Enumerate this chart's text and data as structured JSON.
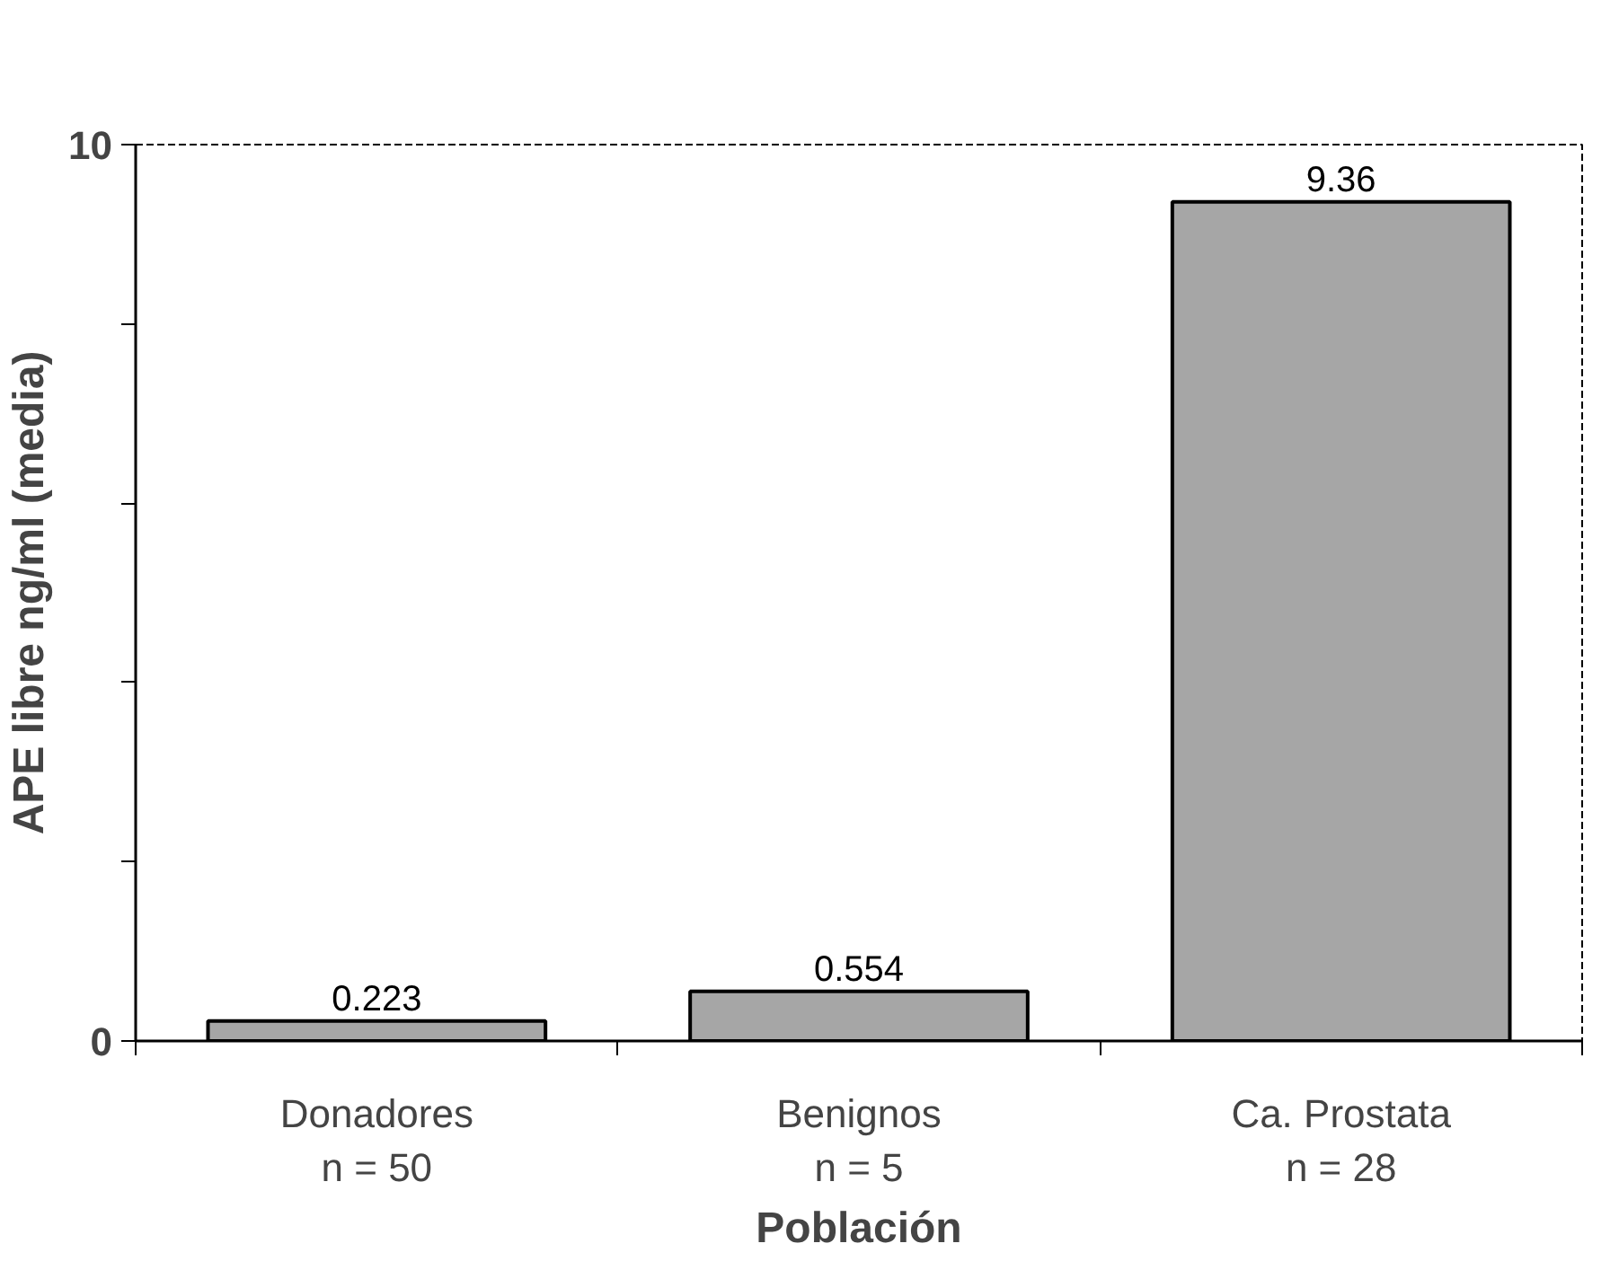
{
  "chart_data": {
    "type": "bar",
    "xlabel": "Población",
    "ylabel": "APE libre ng/ml (media)",
    "categories": [
      "Donadores\nn = 50",
      "Benignos\nn = 5",
      "Ca. Prostata\nn = 28"
    ],
    "values": [
      0.223,
      0.554,
      9.36
    ],
    "color": "#a6a6a6",
    "data_labels": true,
    "ylim": [
      0,
      10
    ],
    "yticks": [
      0,
      {
        "value": 2,
        "label": null
      },
      {
        "value": 4,
        "label": null
      },
      {
        "value": 6,
        "label": null
      },
      {
        "value": 8,
        "label": null
      },
      10
    ],
    "grid": false
  }
}
